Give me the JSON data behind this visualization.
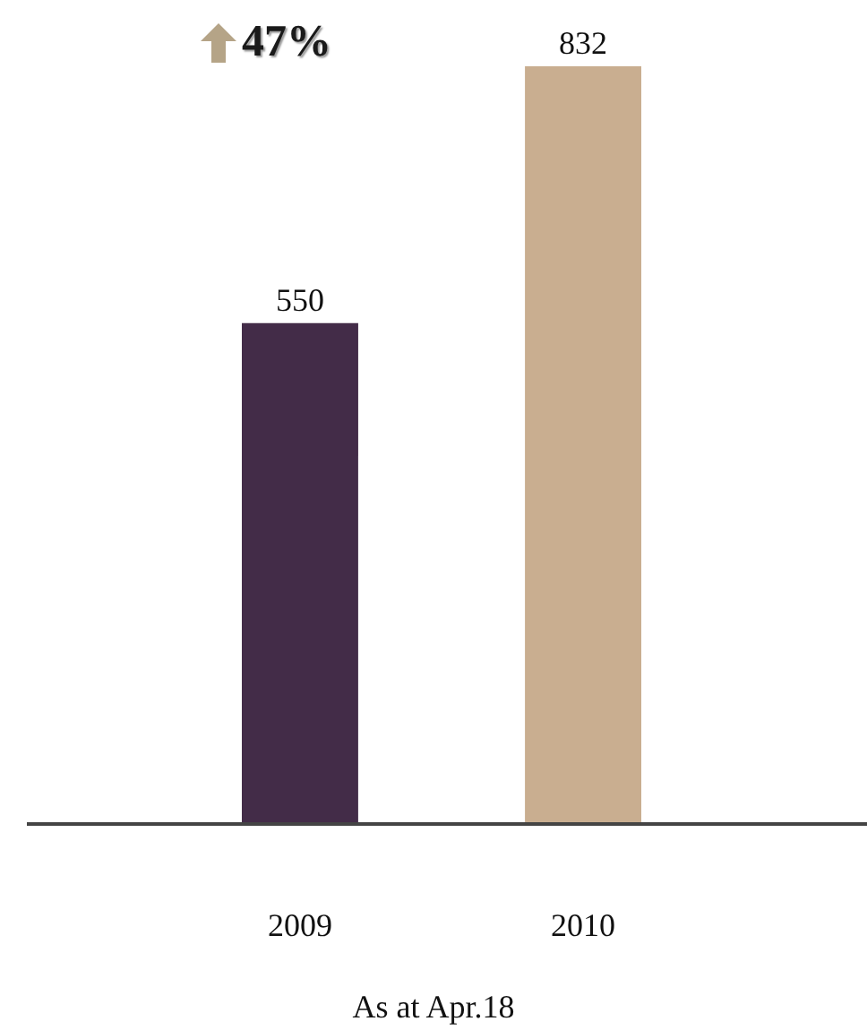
{
  "chart_data": {
    "type": "bar",
    "categories": [
      "2009",
      "2010"
    ],
    "values": [
      550,
      832
    ],
    "colors": [
      "#432c48",
      "#c9ae90"
    ],
    "data_labels": true,
    "annotations": [
      "47%",
      "As at Apr.18"
    ]
  }
}
